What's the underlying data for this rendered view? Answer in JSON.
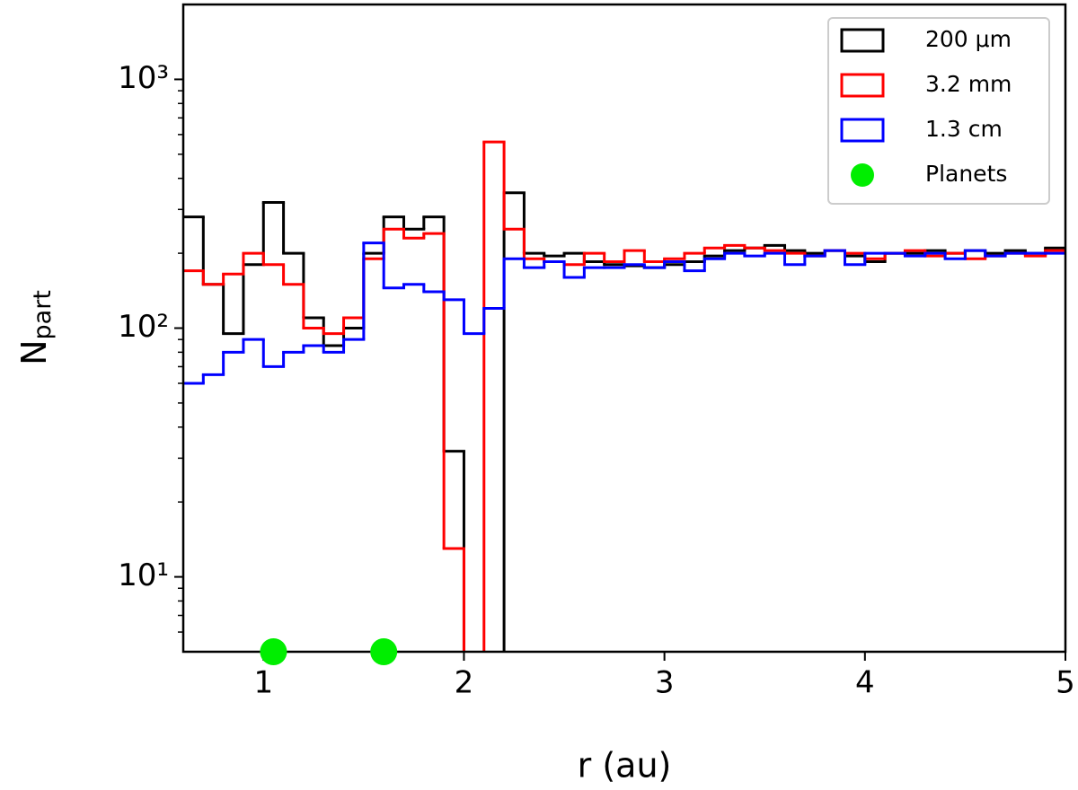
{
  "chart_data": {
    "type": "histogram",
    "xlabel": "r (au)",
    "ylabel": {
      "main": "N",
      "sub": "part"
    },
    "xlim": [
      0.6,
      5
    ],
    "xticks": [
      1,
      2,
      3,
      4,
      5
    ],
    "ylim": [
      5,
      2000
    ],
    "yscale": "log",
    "yticks": [
      {
        "value": 10,
        "label": "10¹"
      },
      {
        "value": 100,
        "label": "10²"
      },
      {
        "value": 1000,
        "label": "10³"
      }
    ],
    "yminorticks": [
      6,
      7,
      8,
      9,
      20,
      30,
      40,
      50,
      60,
      70,
      80,
      90,
      200,
      300,
      400,
      500,
      600,
      700,
      800,
      900
    ],
    "legend": "upper right",
    "bins": [
      0.6,
      0.7,
      0.8,
      0.9,
      1.0,
      1.1,
      1.2,
      1.3,
      1.4,
      1.5,
      1.6,
      1.7,
      1.8,
      1.9,
      2.0,
      2.1,
      2.2,
      2.3,
      2.4,
      2.5,
      2.6,
      2.7,
      2.8,
      2.9,
      3.0,
      3.1,
      3.2,
      3.3,
      3.4,
      3.5,
      3.6,
      3.7,
      3.8,
      3.9,
      4.0,
      4.1,
      4.2,
      4.3,
      4.4,
      4.5,
      4.6,
      4.7,
      4.8,
      4.9,
      5.0
    ],
    "series": [
      {
        "name": "200 μm",
        "color": "#000000",
        "values": [
          280,
          150,
          95,
          180,
          320,
          200,
          110,
          85,
          100,
          200,
          280,
          250,
          280,
          32,
          0,
          0,
          350,
          200,
          195,
          200,
          185,
          180,
          178,
          175,
          180,
          185,
          195,
          205,
          210,
          215,
          205,
          200,
          205,
          195,
          185,
          200,
          200,
          205,
          200,
          205,
          200,
          205,
          200,
          210
        ]
      },
      {
        "name": "3.2 mm",
        "color": "#ff0000",
        "values": [
          170,
          150,
          165,
          200,
          180,
          150,
          100,
          95,
          110,
          190,
          250,
          230,
          240,
          13,
          0,
          560,
          250,
          190,
          185,
          180,
          200,
          185,
          205,
          185,
          190,
          200,
          210,
          215,
          210,
          205,
          200,
          195,
          205,
          200,
          190,
          200,
          205,
          195,
          200,
          190,
          195,
          200,
          195,
          205
        ]
      },
      {
        "name": "1.3 cm",
        "color": "#0000ff",
        "values": [
          60,
          65,
          80,
          90,
          70,
          80,
          85,
          80,
          90,
          220,
          145,
          150,
          140,
          130,
          95,
          120,
          190,
          175,
          185,
          160,
          175,
          175,
          180,
          175,
          185,
          170,
          190,
          200,
          195,
          200,
          180,
          195,
          205,
          180,
          200,
          200,
          195,
          200,
          190,
          205,
          195,
          200,
          200,
          200
        ]
      }
    ],
    "planets": {
      "name": "Planets",
      "color": "#00ee00",
      "x": [
        1.05,
        1.6
      ],
      "values": [
        5,
        5
      ]
    }
  }
}
